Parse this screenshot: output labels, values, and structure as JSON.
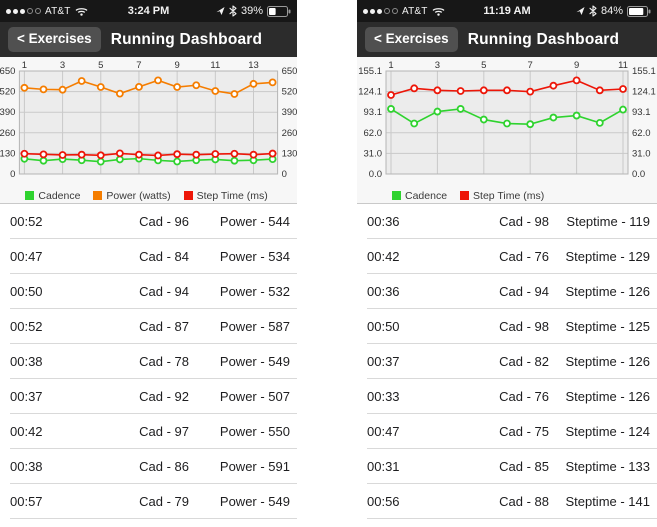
{
  "icons": [
    "signal-dots-icon",
    "wifi-icon",
    "location-arrow-icon",
    "bluetooth-icon",
    "battery-icon"
  ],
  "colors": {
    "cadence": "#2fd32f",
    "power": "#f57d00",
    "step_time": "#ed1608",
    "nav_bar": "#2c2c2c",
    "status_bar": "#171717",
    "plot_background": "#ececec"
  },
  "panels": [
    {
      "status_bar": {
        "signal_filled": 3,
        "signal_total": 5,
        "carrier": "AT&T",
        "time": "3:24 PM",
        "battery_label": "39%",
        "battery_percent": 39
      },
      "nav": {
        "back_label": "< Exercises",
        "title": "Running Dashboard"
      },
      "table": {
        "rows": [
          {
            "time": "00:52",
            "cadence": "Cad - 96",
            "metric": "Power - 544"
          },
          {
            "time": "00:47",
            "cadence": "Cad - 84",
            "metric": "Power - 534"
          },
          {
            "time": "00:50",
            "cadence": "Cad - 94",
            "metric": "Power - 532"
          },
          {
            "time": "00:52",
            "cadence": "Cad - 87",
            "metric": "Power - 587"
          },
          {
            "time": "00:38",
            "cadence": "Cad - 78",
            "metric": "Power - 549"
          },
          {
            "time": "00:37",
            "cadence": "Cad - 92",
            "metric": "Power - 507"
          },
          {
            "time": "00:42",
            "cadence": "Cad - 97",
            "metric": "Power - 550"
          },
          {
            "time": "00:38",
            "cadence": "Cad - 86",
            "metric": "Power - 591"
          },
          {
            "time": "00:57",
            "cadence": "Cad - 79",
            "metric": "Power - 549"
          }
        ]
      }
    },
    {
      "status_bar": {
        "signal_filled": 3,
        "signal_total": 5,
        "carrier": "AT&T",
        "time": "11:19 AM",
        "battery_label": "84%",
        "battery_percent": 84
      },
      "nav": {
        "back_label": "< Exercises",
        "title": "Running Dashboard"
      },
      "table": {
        "rows": [
          {
            "time": "00:36",
            "cadence": "Cad - 98",
            "metric": "Steptime - 119"
          },
          {
            "time": "00:42",
            "cadence": "Cad - 76",
            "metric": "Steptime - 129"
          },
          {
            "time": "00:36",
            "cadence": "Cad - 94",
            "metric": "Steptime - 126"
          },
          {
            "time": "00:50",
            "cadence": "Cad - 98",
            "metric": "Steptime - 125"
          },
          {
            "time": "00:37",
            "cadence": "Cad - 82",
            "metric": "Steptime - 126"
          },
          {
            "time": "00:33",
            "cadence": "Cad - 76",
            "metric": "Steptime - 126"
          },
          {
            "time": "00:47",
            "cadence": "Cad - 75",
            "metric": "Steptime - 124"
          },
          {
            "time": "00:31",
            "cadence": "Cad - 85",
            "metric": "Steptime - 133"
          },
          {
            "time": "00:56",
            "cadence": "Cad - 88",
            "metric": "Steptime - 141"
          }
        ]
      }
    }
  ],
  "chart_data": [
    {
      "type": "line",
      "title": "",
      "x": [
        1,
        2,
        3,
        4,
        5,
        6,
        7,
        8,
        9,
        10,
        11,
        12,
        13,
        14
      ],
      "x_tick_labels": [
        1,
        3,
        5,
        7,
        9,
        11,
        13
      ],
      "ylim": [
        0,
        650
      ],
      "y_tick_labels": [
        "0",
        "130",
        "260",
        "390",
        "520",
        "650"
      ],
      "grid": true,
      "legend_position": "bottom",
      "series": [
        {
          "name": "Cadence",
          "color": "#2fd32f",
          "values": [
            96,
            84,
            94,
            87,
            78,
            92,
            97,
            86,
            79,
            87,
            92,
            84,
            87,
            94
          ]
        },
        {
          "name": "Power (watts)",
          "color": "#f57d00",
          "values": [
            544,
            534,
            532,
            587,
            549,
            507,
            550,
            591,
            549,
            560,
            524,
            505,
            569,
            578
          ]
        },
        {
          "name": "Step Time (ms)",
          "color": "#ed1608",
          "values": [
            128,
            124,
            120,
            122,
            118,
            130,
            122,
            117,
            125,
            122,
            126,
            128,
            122,
            129
          ]
        }
      ]
    },
    {
      "type": "line",
      "title": "",
      "x": [
        1,
        2,
        3,
        4,
        5,
        6,
        7,
        8,
        9,
        10,
        11
      ],
      "x_tick_labels": [
        1,
        3,
        5,
        7,
        9,
        11
      ],
      "ylim": [
        0,
        155.1
      ],
      "y_tick_labels": [
        "0.0",
        "31.0",
        "62.0",
        "93.1",
        "124.1",
        "155.1"
      ],
      "grid": true,
      "legend_position": "bottom",
      "series": [
        {
          "name": "Cadence",
          "color": "#2fd32f",
          "values": [
            98,
            76,
            94,
            98,
            82,
            76,
            75,
            85,
            88,
            77,
            97
          ]
        },
        {
          "name": "Step Time (ms)",
          "color": "#ed1608",
          "values": [
            119,
            129,
            126,
            125,
            126,
            126,
            124,
            133,
            141,
            126,
            128
          ]
        }
      ]
    }
  ]
}
